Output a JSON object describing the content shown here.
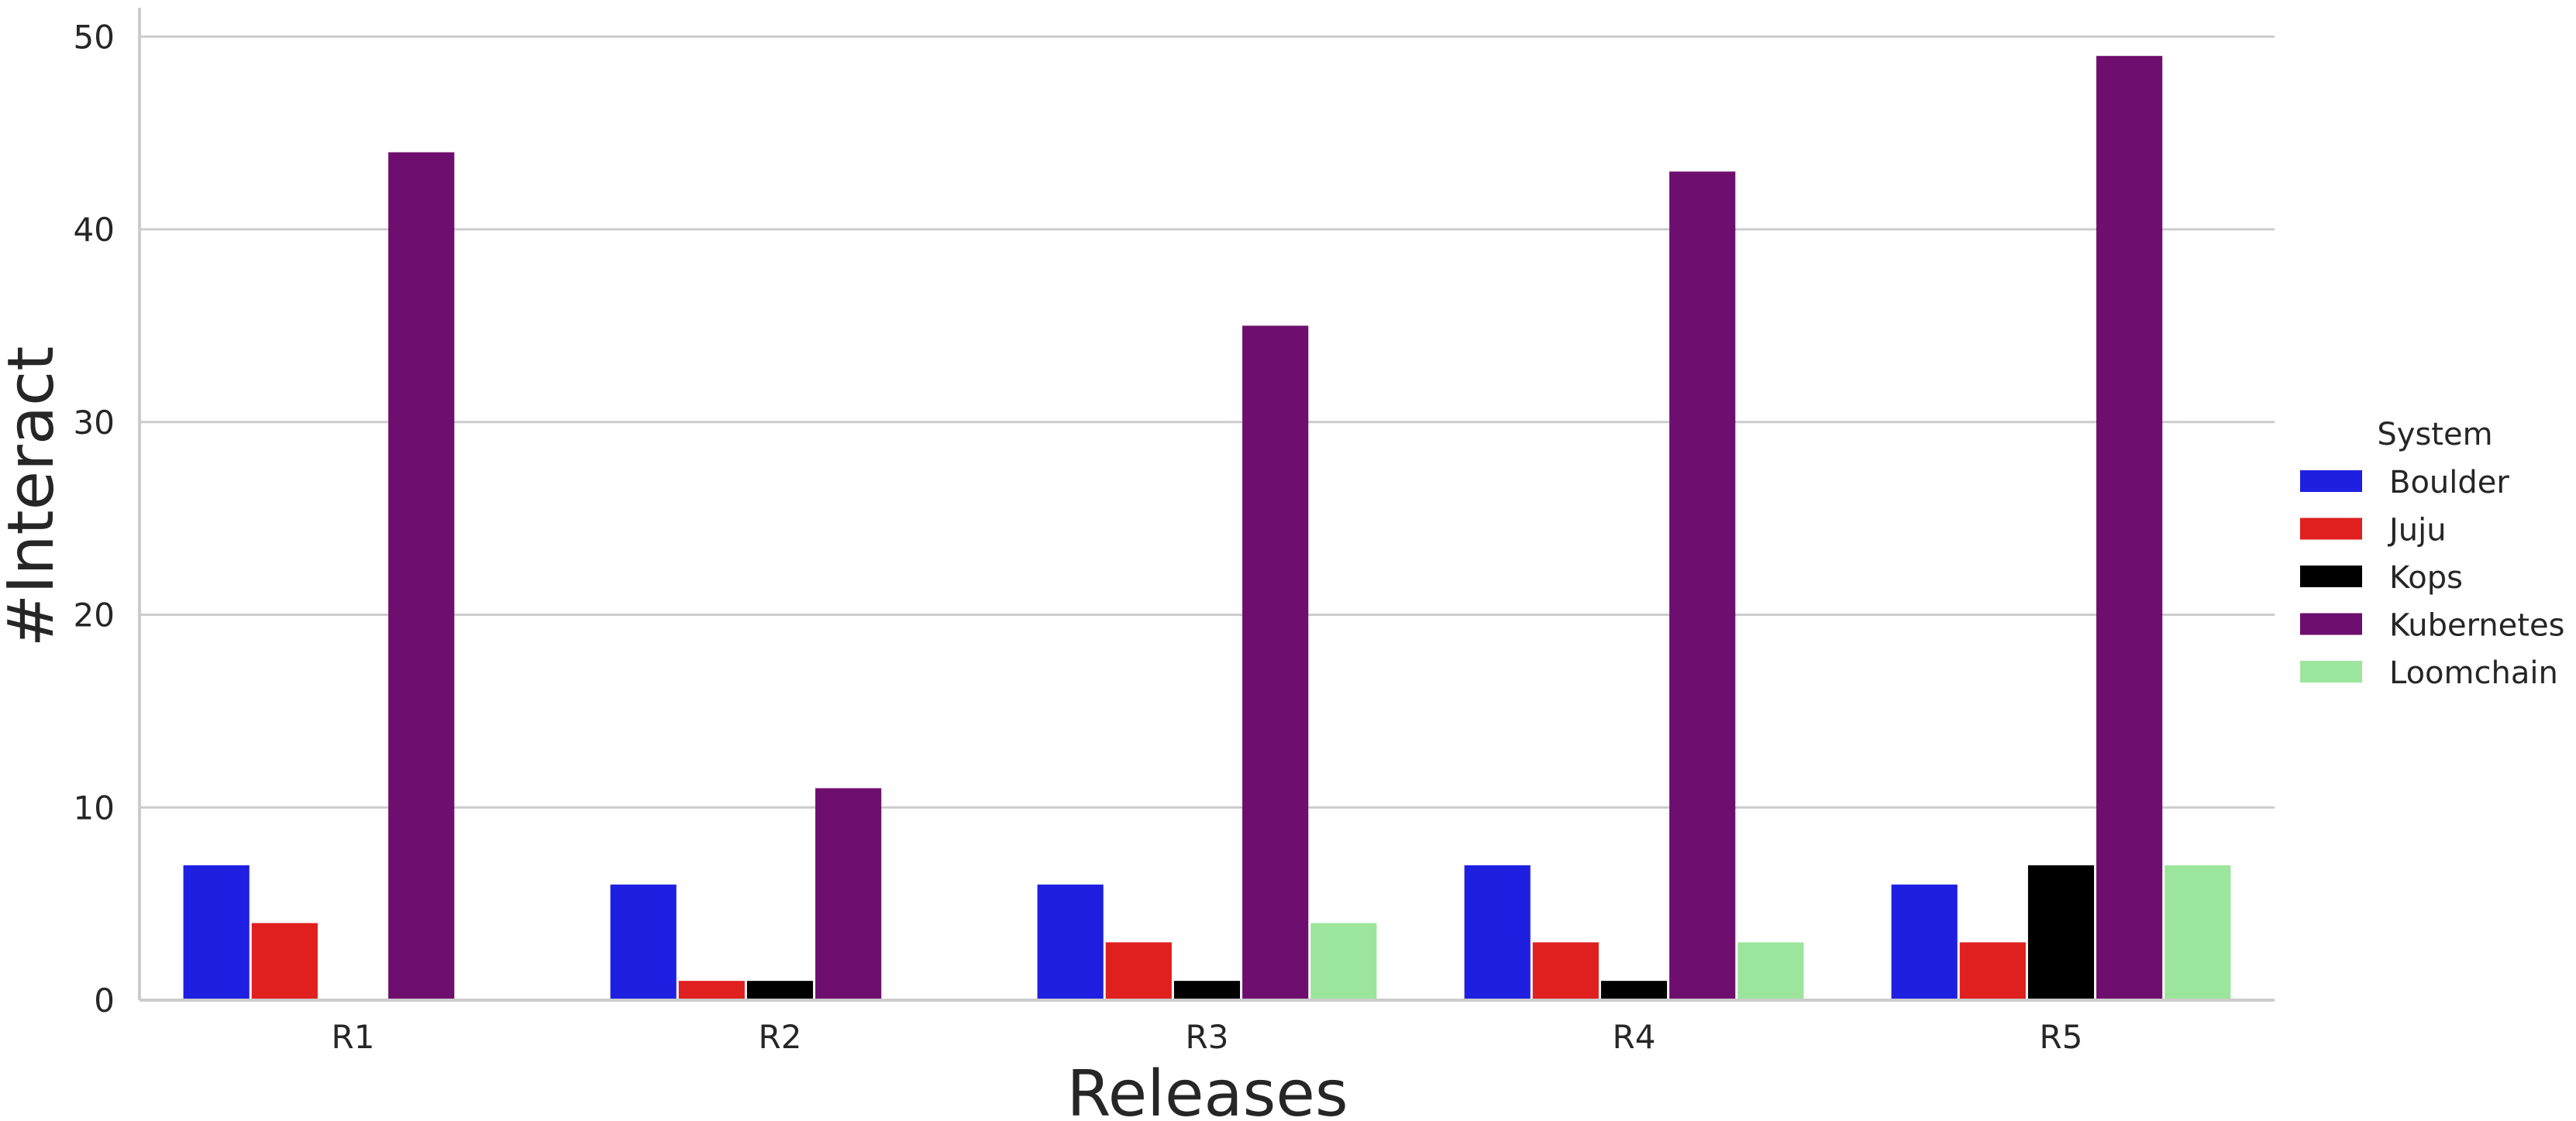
{
  "chart_data": {
    "type": "bar",
    "title": "",
    "xlabel": "Releases",
    "ylabel": "#Interact",
    "categories": [
      "R1",
      "R2",
      "R3",
      "R4",
      "R5"
    ],
    "ylim": [
      0,
      51.5
    ],
    "yticks": [
      0,
      10,
      20,
      30,
      40,
      50
    ],
    "grid": "horizontal",
    "legend": {
      "title": "System",
      "placement": "right"
    },
    "series": [
      {
        "name": "Boulder",
        "color": "#1f1fe1",
        "values": [
          7,
          6,
          6,
          7,
          6
        ]
      },
      {
        "name": "Juju",
        "color": "#e01f1f",
        "values": [
          4,
          1,
          3,
          3,
          3
        ]
      },
      {
        "name": "Kops",
        "color": "#000000",
        "values": [
          0,
          1,
          1,
          1,
          7
        ]
      },
      {
        "name": "Kubernetes",
        "color": "#6e0e6e",
        "values": [
          44,
          11,
          35,
          43,
          49
        ]
      },
      {
        "name": "Loomchain",
        "color": "#9ce59c",
        "values": [
          0,
          0,
          4,
          3,
          7
        ]
      }
    ]
  }
}
